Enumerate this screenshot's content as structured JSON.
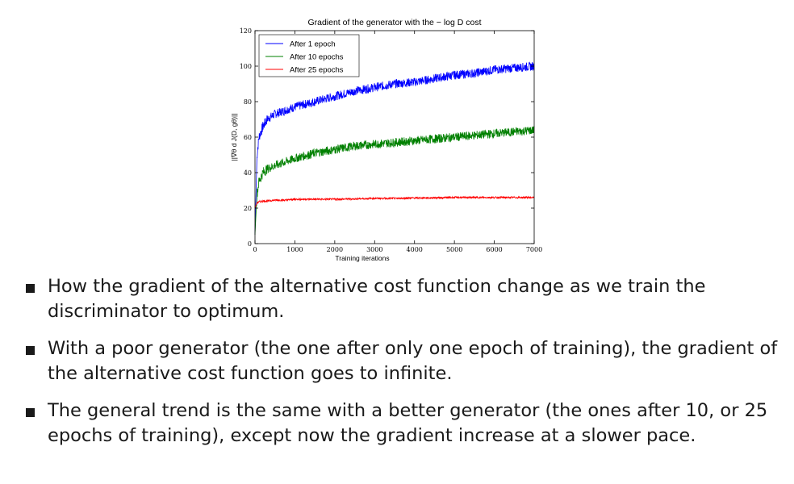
{
  "chart_data": {
    "type": "line",
    "title": "Gradient of the generator with the − log D cost",
    "xlabel": "Training iterations",
    "ylabel": "||∇θ d J(D, gθ)||",
    "xlim": [
      0,
      7000
    ],
    "ylim": [
      0,
      120
    ],
    "xticks": [
      "0",
      "1000",
      "2000",
      "3000",
      "4000",
      "5000",
      "6000",
      "7000"
    ],
    "yticks": [
      "0",
      "20",
      "40",
      "60",
      "80",
      "100",
      "120"
    ],
    "legend_position": "top-left",
    "grid": false,
    "x": [
      0,
      50,
      100,
      200,
      300,
      500,
      750,
      1000,
      1500,
      2000,
      2500,
      3000,
      3500,
      4000,
      4500,
      5000,
      5500,
      6000,
      6500,
      7000
    ],
    "series": [
      {
        "name": "After 1 epoch",
        "color": "#0000ff",
        "values": [
          5,
          50,
          60,
          66,
          70,
          73,
          75,
          77,
          80,
          83,
          86,
          88,
          90,
          91,
          93,
          95,
          96,
          98,
          99,
          100
        ],
        "noise": 2.5
      },
      {
        "name": "After 10 epochs",
        "color": "#008000",
        "values": [
          5,
          28,
          35,
          40,
          42,
          44,
          46,
          48,
          51,
          53,
          55,
          56,
          57,
          58,
          59,
          60,
          61,
          62,
          63,
          64
        ],
        "noise": 2.5
      },
      {
        "name": "After 25 epochs",
        "color": "#ff0000",
        "values": [
          20,
          23,
          23.5,
          24,
          24,
          24.5,
          24.5,
          25,
          25,
          25,
          25.2,
          25.5,
          25.5,
          25.7,
          25.8,
          26,
          26,
          26,
          26,
          26
        ],
        "noise": 0.5
      }
    ]
  },
  "bullets": [
    "How the gradient of the alternative cost function change as we train the discriminator to optimum.",
    "With a poor generator (the one after only one epoch of training), the gradient of the alternative cost function goes to infinite.",
    "The general trend is the same with a better generator (the ones after 10, or 25 epochs of training), except now the gradient increase at a slower pace."
  ]
}
